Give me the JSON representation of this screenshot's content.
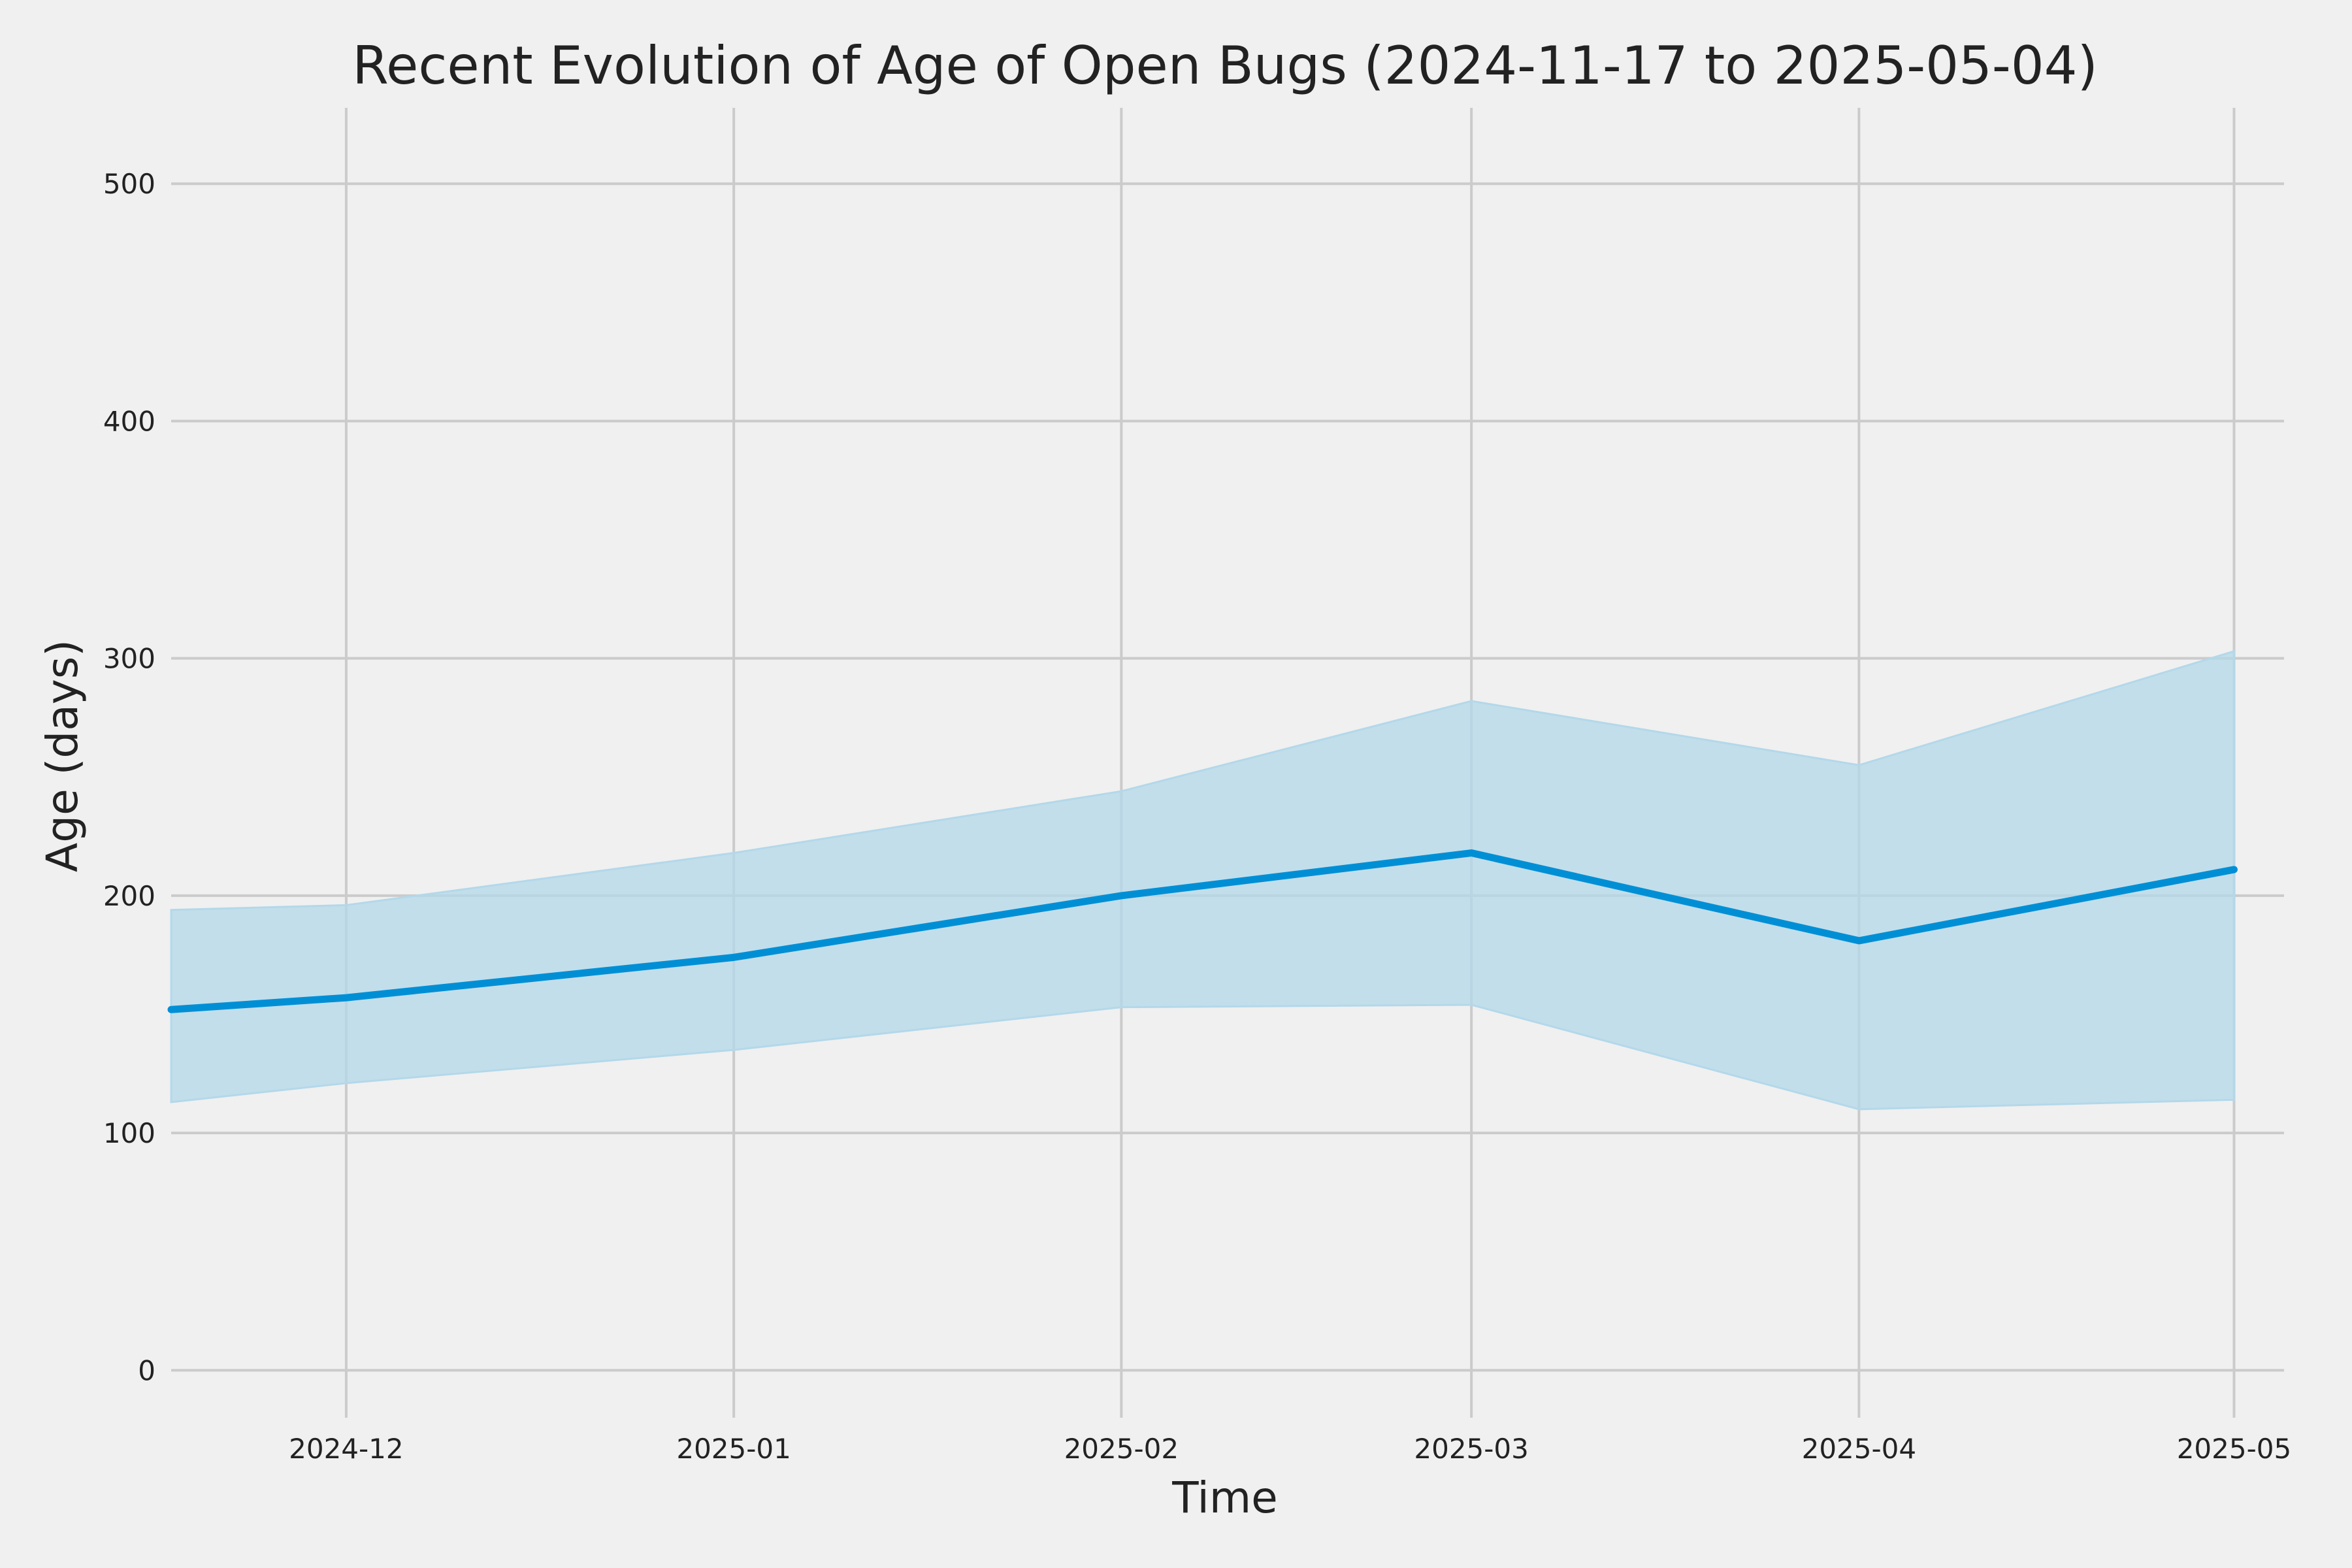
{
  "chart_data": {
    "type": "line",
    "title": "Recent Evolution of Age of Open Bugs (2024-11-17 to 2025-05-04)",
    "xlabel": "Time",
    "ylabel": "Age (days)",
    "xlim": [
      "2024-11-17",
      "2025-05-05"
    ],
    "ylim": [
      -20,
      532
    ],
    "x_ticks": [
      "2024-12",
      "2025-01",
      "2025-02",
      "2025-03",
      "2025-04",
      "2025-05"
    ],
    "y_ticks": [
      0,
      100,
      200,
      300,
      400,
      500
    ],
    "grid": true,
    "series": [
      {
        "x": [
          "2024-11-17",
          "2024-12-01",
          "2025-01-01",
          "2025-02-01",
          "2025-03-01",
          "2025-04-01",
          "2025-05-01"
        ],
        "y": [
          152,
          157,
          174,
          200,
          218,
          181,
          211
        ],
        "upper": [
          194,
          196,
          218,
          244,
          282,
          255,
          303
        ],
        "lower": [
          113,
          121,
          135,
          153,
          154,
          110,
          114
        ],
        "color": "#008fd5",
        "band_color": "#b3d8ea"
      }
    ]
  }
}
